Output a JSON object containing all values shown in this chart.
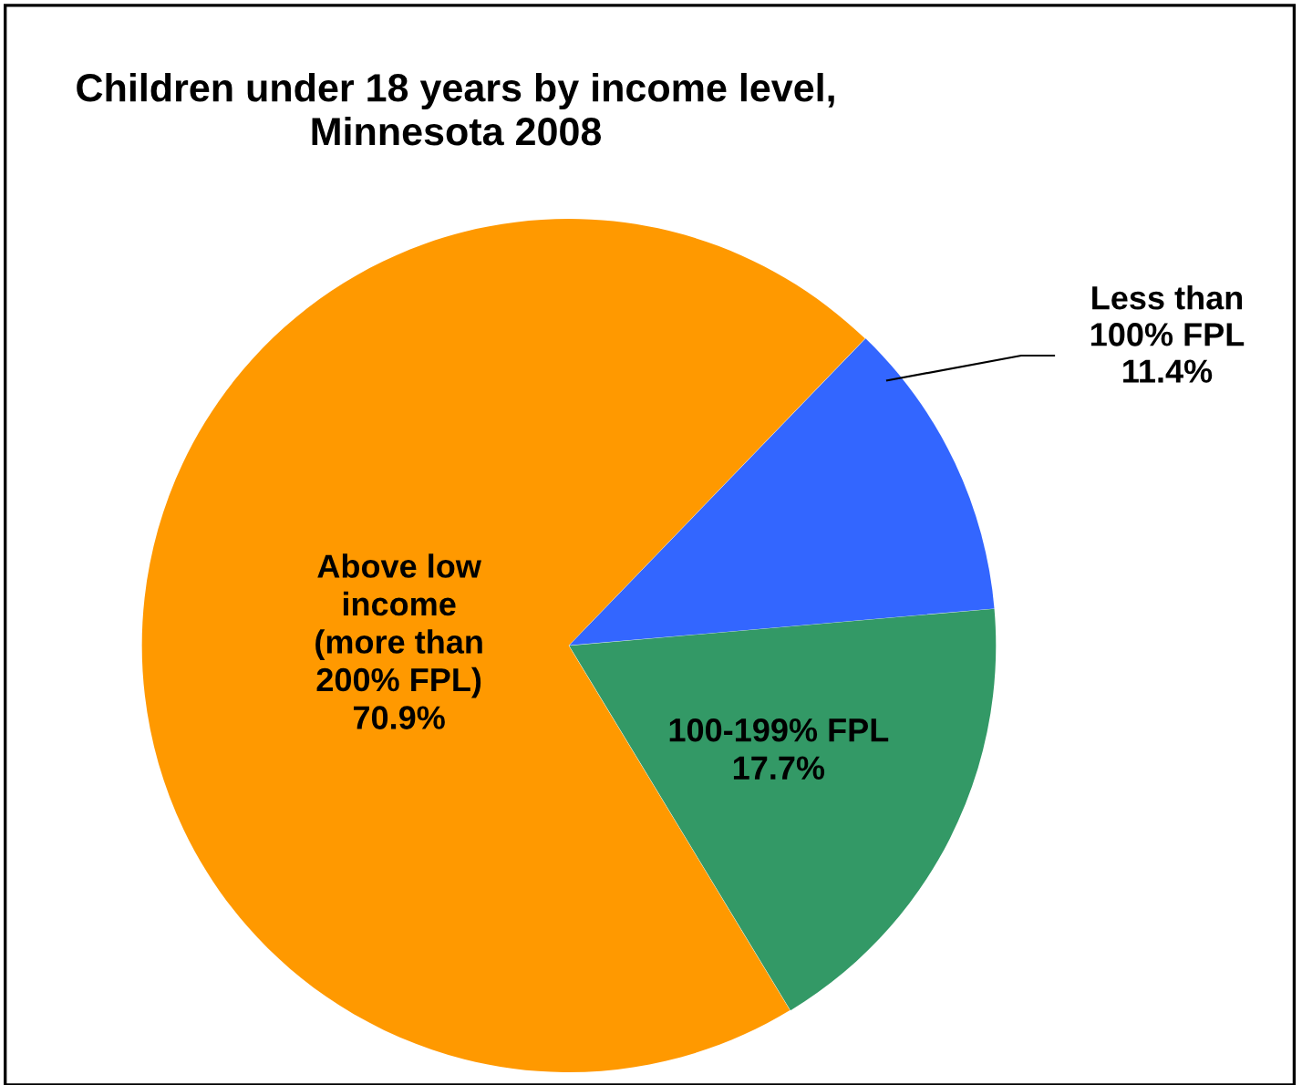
{
  "chart_data": {
    "type": "pie",
    "title": "Children under 18 years by income level,\nMinnesota 2008",
    "categories": [
      "Less than\n100% FPL",
      "100-199% FPL",
      "Above low\nincome\n(more than\n200% FPL)"
    ],
    "values": [
      11.4,
      17.7,
      70.9
    ],
    "value_labels": [
      "11.4%",
      "17.7%",
      "70.9%"
    ],
    "colors": [
      "#3366ff",
      "#339966",
      "#ff9900"
    ]
  }
}
